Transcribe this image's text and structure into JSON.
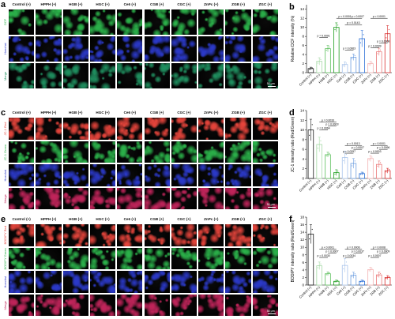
{
  "conditions": [
    "Control (+)",
    "HPPH (+)",
    "HGB (+)",
    "HGC (+)",
    "Ce6 (+)",
    "CGB (+)",
    "CGC (+)",
    "ZnPc (+)",
    "ZGB (+)",
    "ZGC (+)"
  ],
  "colors": {
    "red": "#e5443b",
    "green": "#2bb24a",
    "blue": "#2b39c9",
    "merge_red": "#c0245a",
    "merge_dcf": "#1f8f5f",
    "series_colors": [
      "#1a1a1a",
      "#a6d9a6",
      "#5cbf5c",
      "#1f9e1f",
      "#a9c4ea",
      "#6d9ee0",
      "#2a6fd6",
      "#f4b3b3",
      "#ea7777",
      "#d93030"
    ]
  },
  "panels": {
    "a": {
      "letter": "a",
      "rows": [
        "DCF",
        "Hoechst",
        "Merge"
      ],
      "row_colors": [
        "green",
        "blue",
        "merge_dcf"
      ],
      "scale": "50 μm"
    },
    "c": {
      "letter": "c",
      "rows": [
        "JC-1 Red",
        "JC-1 Green",
        "Hoechst",
        "Merge"
      ],
      "row_colors": [
        "red",
        "green",
        "blue",
        "merge_red"
      ],
      "scale": "50 μm"
    },
    "e": {
      "letter": "e",
      "rows": [
        "BODIPY Red",
        "BODIPY Green",
        "Hoechst",
        "Merge"
      ],
      "row_colors": [
        "red",
        "green",
        "blue",
        "merge_red"
      ],
      "scale": "50 μm"
    }
  },
  "chart_data": [
    {
      "panel": "b",
      "type": "bar",
      "title": "",
      "ylabel": "Relative DCF intensity (%)",
      "ylim": [
        0,
        15
      ],
      "yticks": [
        0,
        2,
        4,
        6,
        8,
        10,
        12,
        14
      ],
      "categories": [
        "Control (+)",
        "HPPH (+)",
        "HGB (+)",
        "HGC (+)",
        "Ce6 (+)",
        "CGB (+)",
        "CGC (+)",
        "ZnPc (+)",
        "ZGB (+)",
        "ZGC (+)"
      ],
      "values": [
        0.9,
        2.5,
        5.3,
        10.0,
        1.8,
        3.4,
        7.5,
        2.0,
        4.6,
        8.6
      ],
      "errors": [
        0.3,
        0.8,
        0.7,
        1.0,
        0.6,
        0.7,
        1.8,
        0.5,
        0.8,
        1.8
      ],
      "significance": [
        {
          "text": "p < 0.0001",
          "from": 3,
          "to": 5,
          "level": 12.0
        },
        {
          "text": "p = 0.0007",
          "from": 5,
          "to": 6,
          "level": 12.0
        },
        {
          "text": "p < 0.0001",
          "from": 7,
          "to": 9,
          "level": 12.0
        },
        {
          "text": "p = 0.0143",
          "from": 4,
          "to": 6,
          "level": 10.6
        },
        {
          "text": "p = 0.0001",
          "from": 1,
          "to": 2,
          "level": 7.8
        },
        {
          "text": "p = 0.0008",
          "from": 8,
          "to": 9,
          "level": 6.5
        },
        {
          "text": "p = 0.0063",
          "from": 4,
          "to": 5,
          "level": 5.0
        },
        {
          "text": "p = 0.0039",
          "from": 7,
          "to": 8,
          "level": 5.5
        }
      ]
    },
    {
      "panel": "d",
      "type": "bar",
      "title": "",
      "ylabel": "JC-1 intensity ratio (Red/Green)",
      "ylim": [
        0,
        14
      ],
      "yticks": [
        0,
        2,
        4,
        6,
        8,
        10,
        12,
        14
      ],
      "categories": [
        "Control (+)",
        "HPPH (+)",
        "HGB (+)",
        "HGC (+)",
        "Ce6 (+)",
        "CGB (+)",
        "CGC (+)",
        "ZnPc (+)",
        "ZGB (+)",
        "ZGC (+)"
      ],
      "values": [
        10.0,
        7.0,
        4.9,
        1.2,
        4.3,
        3.1,
        1.0,
        4.1,
        2.9,
        1.6
      ],
      "errors": [
        2.2,
        1.5,
        0.5,
        0.6,
        1.3,
        1.0,
        0.3,
        0.6,
        0.7,
        0.5
      ],
      "significance": [
        {
          "text": "p = 0.0033",
          "from": 1,
          "to": 3,
          "level": 11.6
        },
        {
          "text": "p = 0.0003",
          "from": 2,
          "to": 3,
          "level": 10.8
        },
        {
          "text": "p = 0.0064",
          "from": 1,
          "to": 2,
          "level": 10.0
        },
        {
          "text": "p = 0.0013",
          "from": 4,
          "to": 6,
          "level": 6.8
        },
        {
          "text": "p = 0.0001",
          "from": 7,
          "to": 9,
          "level": 6.8
        },
        {
          "text": "p = 0.0007",
          "from": 5,
          "to": 6,
          "level": 6.0
        },
        {
          "text": "p = 0.0096",
          "from": 8,
          "to": 9,
          "level": 6.0
        },
        {
          "text": "p = 0.0297",
          "from": 4,
          "to": 5,
          "level": 5.2
        },
        {
          "text": "p = 0.0003",
          "from": 7,
          "to": 8,
          "level": 5.2
        }
      ]
    },
    {
      "panel": "f",
      "type": "bar",
      "title": "",
      "ylabel": "BODIPY intensity ratio (Red/Green)",
      "ylim": [
        0,
        18
      ],
      "yticks": [
        0,
        2,
        4,
        6,
        8,
        10,
        12,
        14,
        16,
        18
      ],
      "categories": [
        "Control (+)",
        "HPPH (+)",
        "HGB (+)",
        "HGC (+)",
        "Ce6 (+)",
        "CGB (+)",
        "CGC (+)",
        "ZnPc (+)",
        "ZGB (+)",
        "ZGC (+)"
      ],
      "values": [
        13.5,
        5.1,
        3.0,
        1.0,
        5.2,
        2.6,
        1.0,
        4.1,
        2.7,
        2.0
      ],
      "errors": [
        2.5,
        1.0,
        0.5,
        0.3,
        1.8,
        0.8,
        0.3,
        0.6,
        0.7,
        0.5
      ],
      "significance": [
        {
          "text": "p < 0.0001",
          "from": 1,
          "to": 3,
          "level": 9.5
        },
        {
          "text": "p = 0.0006",
          "from": 4,
          "to": 6,
          "level": 9.5
        },
        {
          "text": "p = 0.0008",
          "from": 7,
          "to": 9,
          "level": 9.5
        },
        {
          "text": "p = 0.0007",
          "from": 2,
          "to": 3,
          "level": 8.5
        },
        {
          "text": "p = 0.0037",
          "from": 5,
          "to": 6,
          "level": 8.5
        },
        {
          "text": "p = 0.0009",
          "from": 8,
          "to": 9,
          "level": 8.5
        },
        {
          "text": "p = 0.0030",
          "from": 1,
          "to": 2,
          "level": 7.3
        },
        {
          "text": "p = 0.0034",
          "from": 4,
          "to": 5,
          "level": 7.3
        },
        {
          "text": "p = 0.0007",
          "from": 7,
          "to": 8,
          "level": 7.3
        }
      ]
    }
  ]
}
